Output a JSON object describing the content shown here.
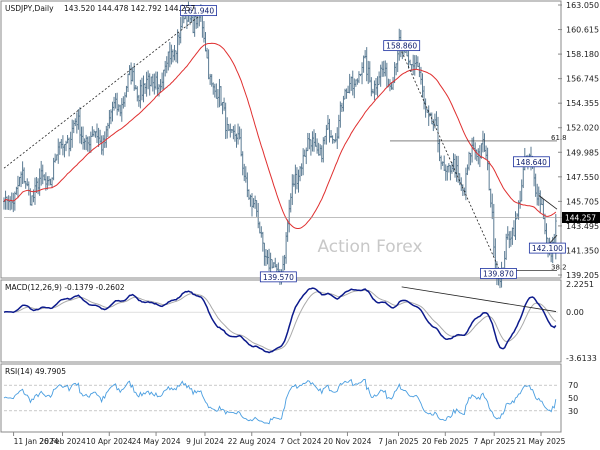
{
  "header": {
    "symbol_label": "USDJPY,Daily",
    "ohlc": "143.520 144.478 142.792 144.257"
  },
  "watermark": "Action Forex",
  "colors": {
    "candle": "#5b7b93",
    "ma": "#e03030",
    "trendline": "#222222",
    "macd_main": "#0c1a8c",
    "macd_signal": "#aaaaaa",
    "rsi": "#4a9ee0",
    "label_border": "#1a2fa0",
    "grid_dashed": "#aaaaaa"
  },
  "chart_data": [
    {
      "type": "candlestick",
      "panel": "price",
      "title": "USDJPY,Daily",
      "ylim": [
        139.205,
        163.05
      ],
      "y_ticks": [
        "163.050",
        "160.615",
        "158.180",
        "156.745",
        "154.355",
        "152.020",
        "149.985",
        "147.550",
        "145.705",
        "143.495",
        "141.350",
        "139.205"
      ],
      "x_ticks": [
        "11 Jan 2024",
        "26 Feb 2024",
        "10 Apr 2024",
        "24 May 2024",
        "9 Jul 2024",
        "22 Aug 2024",
        "7 Oct 2024",
        "20 Nov 2024",
        "7 Jan 2025",
        "20 Feb 2025",
        "7 Apr 2025",
        "21 May 2025"
      ],
      "current_price": "144.257",
      "key_points": [
        {
          "date": "11 Jan 2024",
          "close": 145.5
        },
        {
          "date": "26 Feb 2024",
          "close": 150.1
        },
        {
          "date": "10 Apr 2024",
          "close": 153.0
        },
        {
          "date": "24 May 2024",
          "close": 157.0
        },
        {
          "date": "3 Jul 2024",
          "close": 161.94
        },
        {
          "date": "22 Aug 2024",
          "close": 145.0
        },
        {
          "date": "16 Sep 2024",
          "close": 139.57
        },
        {
          "date": "7 Oct 2024",
          "close": 148.5
        },
        {
          "date": "20 Nov 2024",
          "close": 155.0
        },
        {
          "date": "10 Jan 2025",
          "close": 158.86
        },
        {
          "date": "20 Feb 2025",
          "close": 150.0
        },
        {
          "date": "10 Mar 2025",
          "close": 146.5
        },
        {
          "date": "28 Mar 2025",
          "close": 151.0
        },
        {
          "date": "11 Apr 2025",
          "close": 139.87
        },
        {
          "date": "12 May 2025",
          "close": 148.64
        },
        {
          "date": "27 May 2025",
          "close": 142.1
        },
        {
          "date": "4 Jun 2025",
          "close": 144.257
        }
      ],
      "annotations": [
        {
          "label": "161.940",
          "value": 161.94,
          "date": "3 Jul 2024"
        },
        {
          "label": "139.570",
          "value": 139.57,
          "date": "16 Sep 2024"
        },
        {
          "label": "158.860",
          "value": 158.86,
          "date": "10 Jan 2025"
        },
        {
          "label": "139.870",
          "value": 139.87,
          "date": "11 Apr 2025"
        },
        {
          "label": "148.640",
          "value": 148.64,
          "date": "12 May 2025"
        },
        {
          "label": "142.100",
          "value": 142.1,
          "date": "27 May 2025"
        }
      ],
      "levels": [
        {
          "label": "61.8",
          "value": 151.0
        },
        {
          "label": "38.2",
          "value": 139.6
        }
      ]
    },
    {
      "type": "line",
      "panel": "macd",
      "title": "MACD(12,26,9) -0.1379 -0.2602",
      "ylim": [
        -3.6133,
        2.2251
      ],
      "y_ticks": [
        "2.2251",
        "0.00",
        "-3.6133"
      ]
    },
    {
      "type": "line",
      "panel": "rsi",
      "title": "RSI(14) 49.7905",
      "ylim": [
        0,
        100
      ],
      "y_ticks": [
        "70",
        "50",
        "30"
      ],
      "levels": [
        70,
        30
      ]
    }
  ]
}
